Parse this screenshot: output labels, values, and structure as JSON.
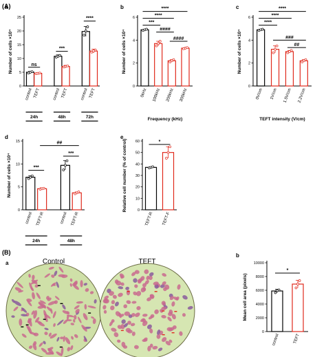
{
  "figure": {
    "section_a_label": "(A)",
    "section_b_label": "(B)",
    "micro_label": "a",
    "micro_titles": [
      "Control",
      "TEFT"
    ]
  },
  "chart_data": [
    {
      "id": "A-a",
      "type": "bar",
      "panel_label": "a",
      "ylabel": "Number of cells ×10⁴",
      "ylim": [
        0,
        25
      ],
      "yticks": [
        0,
        5,
        10,
        15,
        20,
        25
      ],
      "categories": [
        "control",
        "TEFT",
        "control",
        "TEFT",
        "control",
        "TEFT"
      ],
      "groups": [
        {
          "label": "24h",
          "span": [
            0,
            1
          ]
        },
        {
          "label": "48h",
          "span": [
            2,
            3
          ]
        },
        {
          "label": "72h",
          "span": [
            4,
            5
          ]
        }
      ],
      "values": [
        5.0,
        4.6,
        10.8,
        7.1,
        19.8,
        12.7
      ],
      "errors": [
        0.3,
        0.2,
        0.5,
        0.4,
        1.8,
        0.7
      ],
      "colors": [
        "#000000",
        "#e0281b",
        "#000000",
        "#e0281b",
        "#000000",
        "#e0281b"
      ],
      "points": [
        [
          4.7,
          5.0,
          5.2
        ],
        [
          4.5,
          4.6,
          4.7
        ],
        [
          10.5,
          10.8,
          11.1
        ],
        [
          6.9,
          7.1,
          7.3
        ],
        [
          18.5,
          20.0,
          21.5
        ],
        [
          12.3,
          12.7,
          13.1
        ]
      ],
      "annotations": [
        {
          "text": "ns",
          "from": 0,
          "to": 1,
          "y": 6.8
        },
        {
          "text": "***",
          "from": 2,
          "to": 3,
          "y": 12.6
        },
        {
          "text": "****",
          "from": 4,
          "to": 5,
          "y": 23.6
        }
      ]
    },
    {
      "id": "A-b",
      "type": "bar",
      "panel_label": "b",
      "ylabel": "Number of cells ×10⁴",
      "xlabel": "Frequency (kHz)",
      "ylim": [
        0,
        6
      ],
      "yticks": [
        0,
        2,
        4,
        6
      ],
      "categories": [
        "0kHz",
        "100kHz",
        "200kHz",
        "300kHz"
      ],
      "values": [
        4.9,
        3.7,
        2.2,
        3.3
      ],
      "errors": [
        0.05,
        0.2,
        0.1,
        0.05
      ],
      "colors": [
        "#000000",
        "#e0281b",
        "#e0281b",
        "#e0281b"
      ],
      "points": [
        [
          4.85,
          4.9,
          4.95
        ],
        [
          3.5,
          3.7,
          3.9
        ],
        [
          2.1,
          2.2,
          2.3
        ],
        [
          3.25,
          3.3,
          3.35
        ]
      ],
      "annotations": [
        {
          "text": "***",
          "from": 0,
          "to": 1,
          "y": 5.3
        },
        {
          "text": "****",
          "from": 0,
          "to": 2,
          "y": 5.9
        },
        {
          "text": "****",
          "from": 0,
          "to": 3,
          "y": 6.5
        },
        {
          "text": "####",
          "from": 1,
          "to": 2,
          "y": 4.7
        },
        {
          "text": "####",
          "from": 2,
          "to": 3,
          "y": 3.9
        }
      ]
    },
    {
      "id": "A-c",
      "type": "bar",
      "panel_label": "c",
      "ylabel": "Number of cells ×10⁴",
      "xlabel": "TEFT intensity (V/cm)",
      "ylim": [
        0,
        6
      ],
      "yticks": [
        0,
        2,
        4,
        6
      ],
      "categories": [
        "0V/cm",
        "1V/cm",
        "1.5V/cm",
        "2.2V/cm"
      ],
      "values": [
        4.9,
        3.2,
        3.0,
        2.2
      ],
      "errors": [
        0.05,
        0.3,
        0.1,
        0.1
      ],
      "colors": [
        "#000000",
        "#e0281b",
        "#e0281b",
        "#e0281b"
      ],
      "points": [
        [
          4.85,
          4.9,
          4.95
        ],
        [
          2.9,
          3.2,
          3.5
        ],
        [
          2.9,
          3.0,
          3.1
        ],
        [
          2.1,
          2.2,
          2.3
        ]
      ],
      "annotations": [
        {
          "text": "****",
          "from": 0,
          "to": 1,
          "y": 5.3
        },
        {
          "text": "****",
          "from": 0,
          "to": 2,
          "y": 5.9
        },
        {
          "text": "****",
          "from": 0,
          "to": 3,
          "y": 6.5
        },
        {
          "text": "###",
          "from": 1,
          "to": 3,
          "y": 4.0
        },
        {
          "text": "##",
          "from": 2,
          "to": 3,
          "y": 3.35
        }
      ]
    },
    {
      "id": "A-d",
      "type": "bar",
      "panel_label": "d",
      "ylabel": "Number of cells ×10⁴",
      "ylim": [
        0,
        15
      ],
      "yticks": [
        0,
        5,
        10,
        15
      ],
      "categories": [
        "control",
        "TEFT-R",
        "control",
        "TEFT-R"
      ],
      "groups": [
        {
          "label": "24h",
          "span": [
            0,
            1
          ]
        },
        {
          "label": "48h",
          "span": [
            2,
            3
          ]
        }
      ],
      "values": [
        7.1,
        4.6,
        9.7,
        3.7
      ],
      "errors": [
        0.3,
        0.2,
        1.0,
        0.2
      ],
      "colors": [
        "#000000",
        "#e0281b",
        "#000000",
        "#e0281b"
      ],
      "points": [
        [
          6.8,
          7.1,
          7.4
        ],
        [
          4.5,
          4.6,
          4.7
        ],
        [
          8.7,
          9.7,
          10.7
        ],
        [
          3.5,
          3.7,
          3.9
        ]
      ],
      "annotations": [
        {
          "text": "***",
          "from": 0,
          "to": 1,
          "y": 8.6
        },
        {
          "text": "***",
          "from": 2,
          "to": 3,
          "y": 11.7
        },
        {
          "text": "##",
          "from": 1,
          "to": 3,
          "y": 14.0
        }
      ]
    },
    {
      "id": "A-e",
      "type": "bar",
      "panel_label": "e",
      "ylabel": "Relative cell number (% of control)",
      "ylim": [
        0,
        60
      ],
      "yticks": [
        0,
        10,
        20,
        30,
        40,
        50,
        60
      ],
      "categories": [
        "TEFT-R",
        "TEFT-F"
      ],
      "values": [
        37,
        50
      ],
      "errors": [
        0.5,
        5
      ],
      "colors": [
        "#000000",
        "#e0281b"
      ],
      "points": [
        [
          36.5,
          37,
          37.5
        ],
        [
          45,
          50,
          55
        ]
      ],
      "annotations": [
        {
          "text": "*",
          "from": 0,
          "to": 1,
          "y": 57
        }
      ]
    },
    {
      "id": "B-b",
      "type": "bar",
      "panel_label": "b",
      "ylabel": "Mean cell area (pixels)",
      "ylim": [
        0,
        10000
      ],
      "yticks": [
        0,
        2000,
        4000,
        6000,
        8000,
        10000
      ],
      "categories": [
        "control",
        "TEFT"
      ],
      "values": [
        5900,
        6900
      ],
      "errors": [
        250,
        550
      ],
      "colors": [
        "#000000",
        "#e0281b"
      ],
      "points": [
        [
          5650,
          5950,
          6050
        ],
        [
          6350,
          6900,
          7400
        ]
      ],
      "annotations": [
        {
          "text": "*",
          "from": 0,
          "to": 1,
          "y": 8500
        }
      ]
    }
  ]
}
